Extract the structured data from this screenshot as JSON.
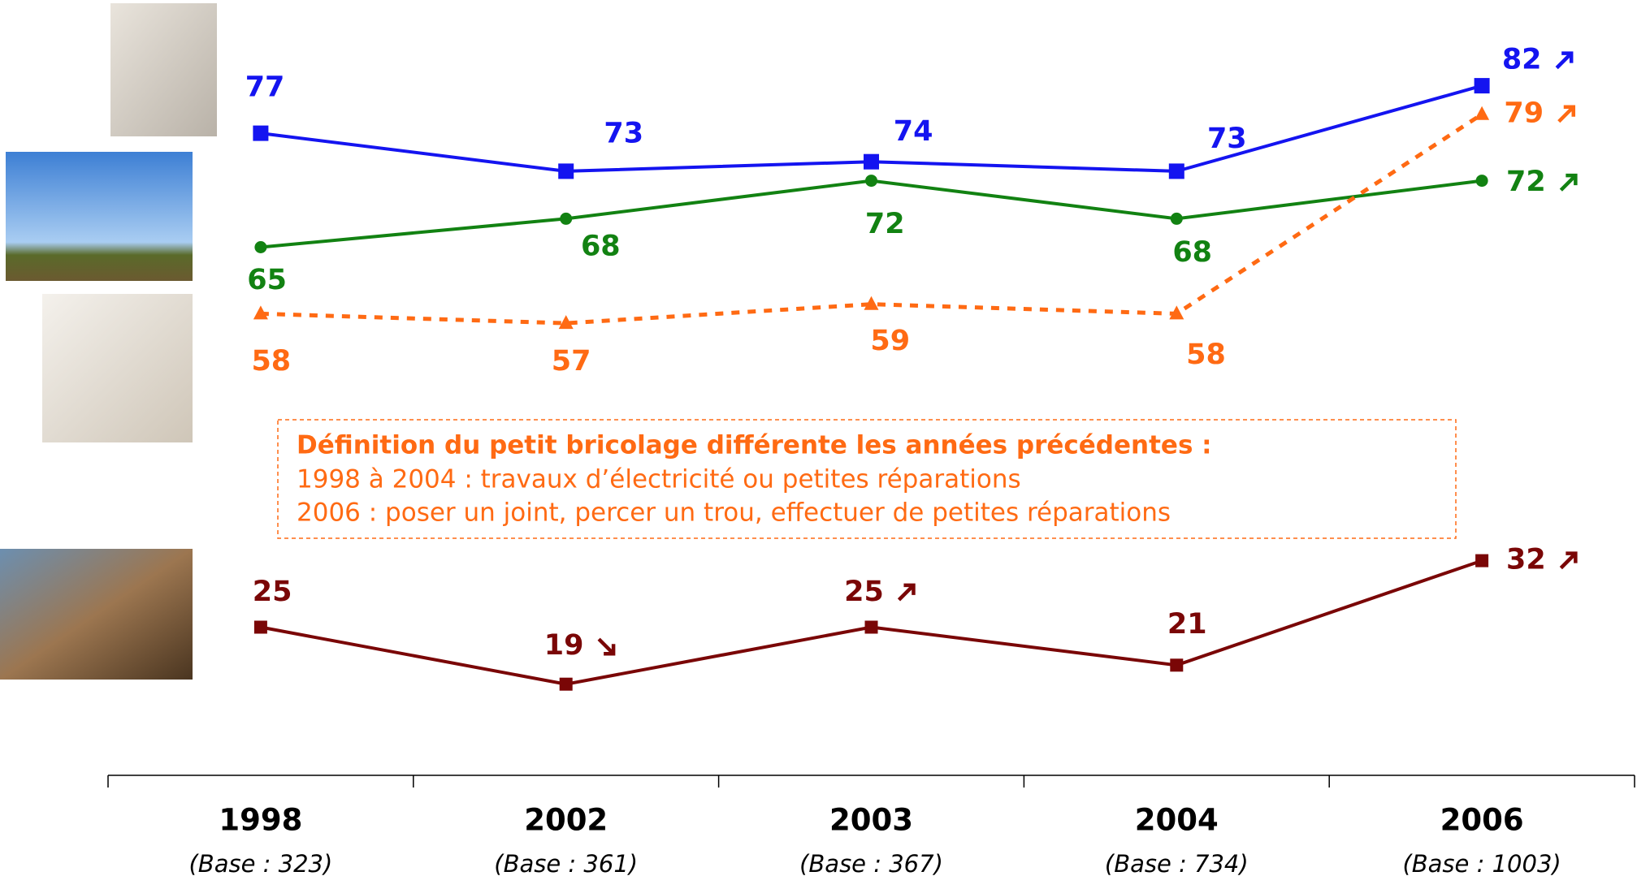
{
  "chart_data": {
    "type": "line",
    "categories": [
      "1998",
      "2002",
      "2003",
      "2004",
      "2006"
    ],
    "base_labels": [
      "(Base : 323)",
      "(Base : 361)",
      "(Base : 367)",
      "(Base : 734)",
      "(Base : 1003)"
    ],
    "series": [
      {
        "color": "#1414f0",
        "marker": "square",
        "dashed": false,
        "values": [
          77,
          73,
          74,
          73,
          82
        ]
      },
      {
        "color": "#128212",
        "marker": "circle",
        "dashed": false,
        "values": [
          65,
          68,
          72,
          68,
          72
        ]
      },
      {
        "color": "#ff6a13",
        "marker": "triangle",
        "dashed": true,
        "values": [
          58,
          57,
          59,
          58,
          79
        ]
      },
      {
        "color": "#7a0606",
        "marker": "square",
        "dashed": false,
        "values": [
          25,
          19,
          25,
          21,
          32
        ]
      }
    ],
    "ylim": [
      10,
      90
    ],
    "annotation": {
      "title": "Définition du petit bricolage différente les années précédentes :",
      "lines": [
        "1998 à 2004 : travaux d’électricité ou petites réparations",
        "2006 : poser un joint, percer un trou, effectuer de petites réparations"
      ]
    }
  }
}
